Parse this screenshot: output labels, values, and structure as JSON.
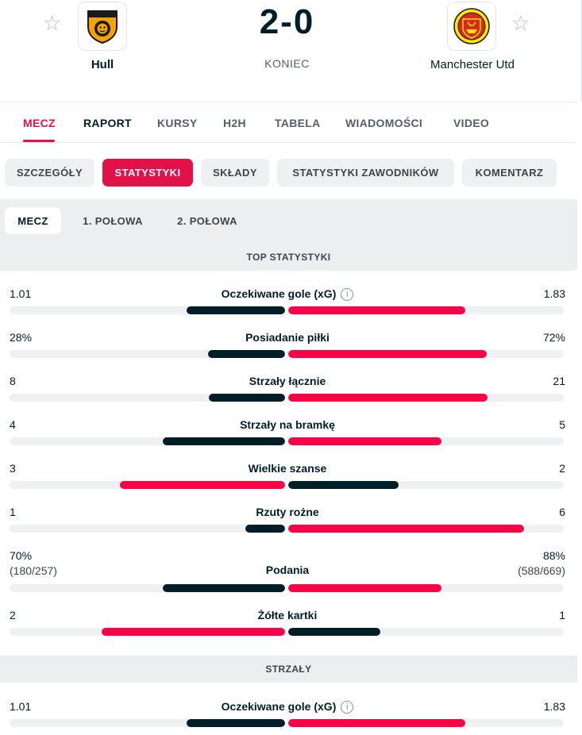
{
  "match": {
    "home": {
      "name": "Hull",
      "logo": "hull-city-crest",
      "color": "#f5a300"
    },
    "away": {
      "name": "Manchester Utd",
      "logo": "manchester-united-crest",
      "color": "#da291c"
    },
    "score": "2-0",
    "status": "KONIEC",
    "favorite_icon": "star-outline-icon"
  },
  "tabs": [
    {
      "label": "MECZ",
      "active": true
    },
    {
      "label": "RAPORT"
    },
    {
      "label": "KURSY"
    },
    {
      "label": "H2H"
    },
    {
      "label": "TABELA"
    },
    {
      "label": "WIADOMOŚCI"
    },
    {
      "label": "VIDEO"
    }
  ],
  "subtabs": [
    {
      "label": "SZCZEGÓŁY"
    },
    {
      "label": "STATYSTYKI",
      "active": true
    },
    {
      "label": "SKŁADY"
    },
    {
      "label": "STATYSTYKI ZAWODNIKÓW"
    },
    {
      "label": "KOMENTARZ"
    }
  ],
  "periods": [
    {
      "label": "MECZ",
      "active": true
    },
    {
      "label": "1. POŁOWA"
    },
    {
      "label": "2. POŁOWA"
    }
  ],
  "sections": [
    {
      "title": "TOP STATYSTYKI",
      "stats": [
        {
          "label": "Oczekiwane gole (xG)",
          "info": true,
          "home": "1.01",
          "away": "1.83",
          "home_share": 0.356,
          "away_share": 0.644,
          "leader": "away"
        },
        {
          "label": "Posiadanie piłki",
          "home": "28%",
          "away": "72%",
          "home_share": 0.28,
          "away_share": 0.72,
          "leader": "away"
        },
        {
          "label": "Strzały łącznie",
          "home": "8",
          "away": "21",
          "home_share": 0.276,
          "away_share": 0.724,
          "leader": "away"
        },
        {
          "label": "Strzały na bramkę",
          "home": "4",
          "away": "5",
          "home_share": 0.444,
          "away_share": 0.556,
          "leader": "away"
        },
        {
          "label": "Wielkie szanse",
          "home": "3",
          "away": "2",
          "home_share": 0.6,
          "away_share": 0.4,
          "leader": "home"
        },
        {
          "label": "Rzuty rożne",
          "home": "1",
          "away": "6",
          "home_share": 0.143,
          "away_share": 0.857,
          "leader": "away"
        },
        {
          "label": "Podania",
          "home": "70%",
          "away": "88%",
          "home_sub": "(180/257)",
          "away_sub": "(588/669)",
          "home_share": 0.443,
          "away_share": 0.557,
          "leader": "away"
        },
        {
          "label": "Żółte kartki",
          "home": "2",
          "away": "1",
          "home_share": 0.667,
          "away_share": 0.333,
          "leader": "home"
        }
      ]
    },
    {
      "title": "STRZAŁY",
      "stats": [
        {
          "label": "Oczekiwane gole (xG)",
          "info": true,
          "home": "1.01",
          "away": "1.83",
          "home_share": 0.356,
          "away_share": 0.644,
          "leader": "away"
        }
      ]
    }
  ],
  "colors": {
    "accent": "#e11149",
    "bar_leader": "#ff0046",
    "bar_other": "#001e28",
    "track": "#eef0f1"
  },
  "info_icon": "info-circle-icon"
}
